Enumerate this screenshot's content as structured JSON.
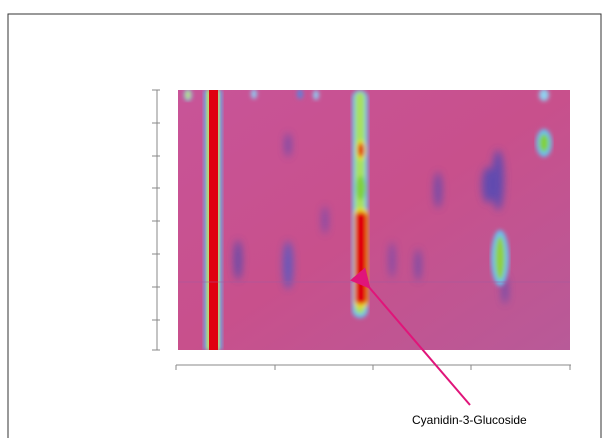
{
  "annotation": {
    "label": "Cyanidin-3-Glucoside"
  }
}
